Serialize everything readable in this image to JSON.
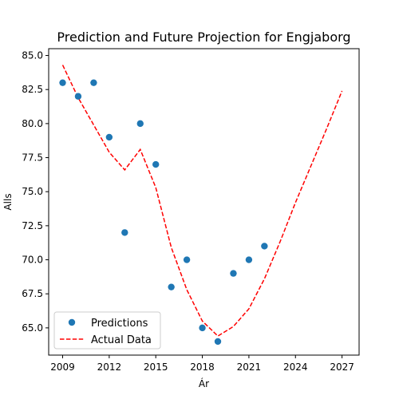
{
  "chart_data": {
    "type": "scatter",
    "title": "Prediction and Future Projection for Engjaborg",
    "xlabel": "Ár",
    "ylabel": "Alls",
    "xlim": [
      2008.1,
      2028.1
    ],
    "ylim": [
      63.0,
      85.5
    ],
    "xticks": [
      2009,
      2012,
      2015,
      2018,
      2021,
      2024,
      2027
    ],
    "yticks": [
      65.0,
      67.5,
      70.0,
      72.5,
      75.0,
      77.5,
      80.0,
      82.5,
      85.0
    ],
    "xtick_labels": [
      "2009",
      "2012",
      "2015",
      "2018",
      "2021",
      "2024",
      "2027"
    ],
    "ytick_labels": [
      "65.0",
      "67.5",
      "70.0",
      "72.5",
      "75.0",
      "77.5",
      "80.0",
      "82.5",
      "85.0"
    ],
    "grid": false,
    "legend_position": "lower-left",
    "series": [
      {
        "name": "Predictions",
        "kind": "scatter",
        "color": "#1f77b4",
        "x": [
          2009,
          2010,
          2011,
          2012,
          2013,
          2014,
          2015,
          2016,
          2017,
          2018,
          2019,
          2020,
          2021,
          2022
        ],
        "y": [
          83,
          82,
          83,
          79,
          72,
          80,
          77,
          68,
          70,
          65,
          64,
          69,
          70,
          71
        ]
      },
      {
        "name": "Actual Data",
        "kind": "line",
        "style": "dashed",
        "color": "#ff0000",
        "x": [
          2009,
          2010,
          2011,
          2012,
          2013,
          2014,
          2015,
          2016,
          2017,
          2018,
          2019,
          2020,
          2021,
          2022,
          2023,
          2024,
          2025,
          2026,
          2027
        ],
        "y": [
          84.3,
          81.9,
          79.9,
          77.9,
          76.6,
          78.1,
          75.3,
          70.9,
          67.8,
          65.5,
          64.4,
          65.1,
          66.4,
          68.6,
          71.3,
          74.2,
          76.9,
          79.6,
          82.4
        ]
      }
    ]
  }
}
